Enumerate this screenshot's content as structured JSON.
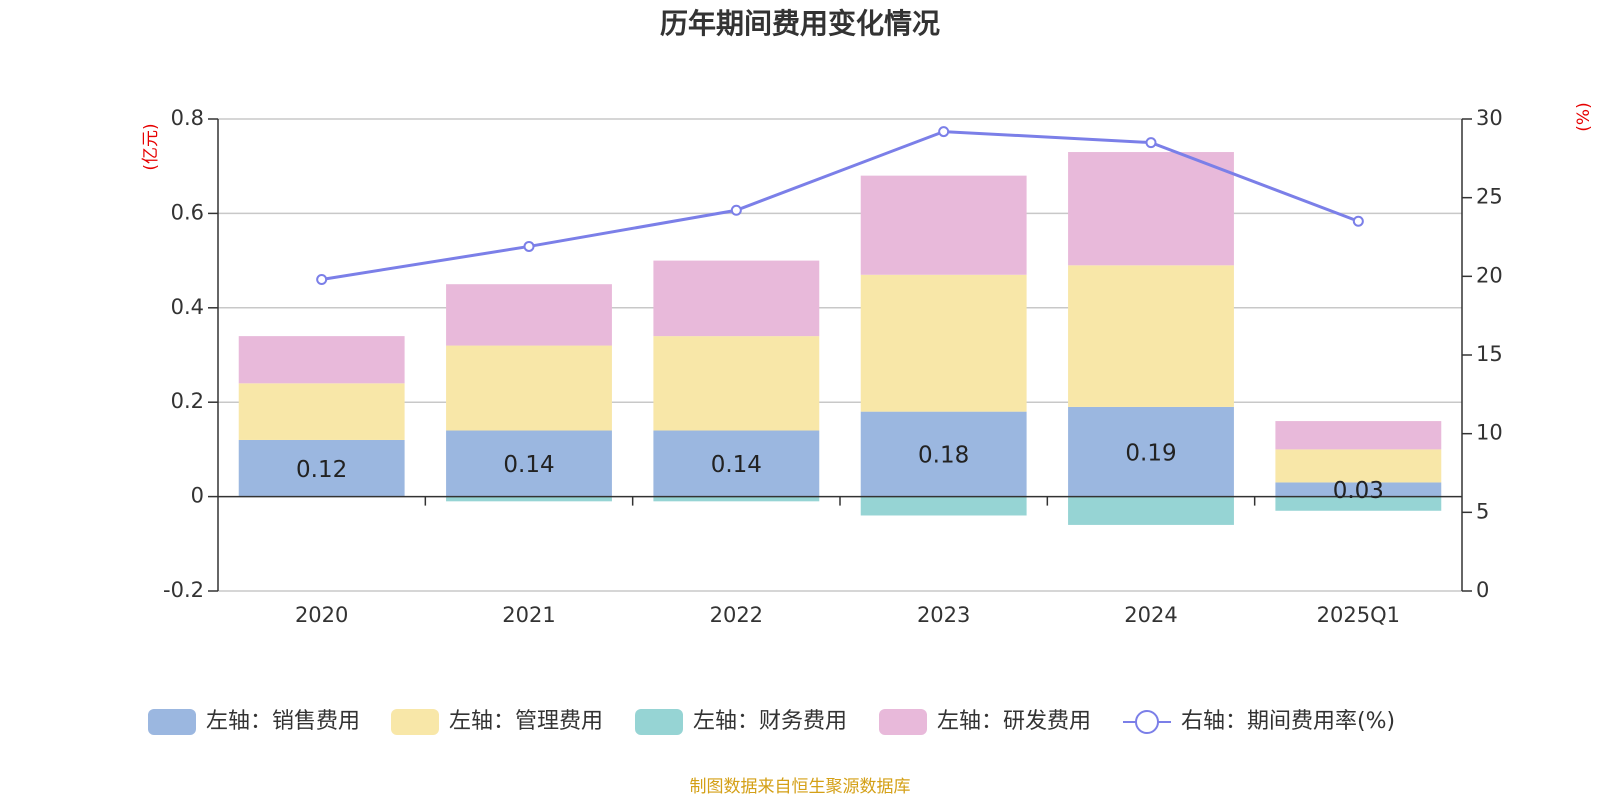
{
  "chart_data": {
    "type": "bar",
    "title": "历年期间费用变化情况",
    "left_unit": "(亿元)",
    "right_unit": "(%)",
    "categories": [
      "2020",
      "2021",
      "2022",
      "2023",
      "2024",
      "2025Q1"
    ],
    "y_left": {
      "min": -0.2,
      "max": 0.8,
      "ticks": [
        -0.2,
        0,
        0.2,
        0.4,
        0.6,
        0.8
      ],
      "tick_labels": [
        "-0.2",
        "0",
        "0.2",
        "0.4",
        "0.6",
        "0.8"
      ]
    },
    "y_right": {
      "min": 0,
      "max": 30,
      "ticks": [
        0,
        5,
        10,
        15,
        20,
        25,
        30
      ],
      "tick_labels": [
        "0",
        "5",
        "10",
        "15",
        "20",
        "25",
        "30"
      ]
    },
    "stacked": true,
    "series": [
      {
        "name": "左轴：销售费用",
        "type": "bar",
        "axis": "left",
        "color": "#9bb7e0",
        "values": [
          0.12,
          0.14,
          0.14,
          0.18,
          0.19,
          0.03
        ],
        "labels": [
          "0.12",
          "0.14",
          "0.14",
          "0.18",
          "0.19",
          "0.03"
        ]
      },
      {
        "name": "左轴：管理费用",
        "type": "bar",
        "axis": "left",
        "color": "#f8e7a8",
        "values": [
          0.12,
          0.18,
          0.2,
          0.29,
          0.3,
          0.07
        ]
      },
      {
        "name": "左轴：财务费用",
        "type": "bar",
        "axis": "left",
        "color": "#96d4d4",
        "values": [
          0.0,
          -0.01,
          -0.01,
          -0.04,
          -0.06,
          -0.03
        ]
      },
      {
        "name": "左轴：研发费用",
        "type": "bar",
        "axis": "left",
        "color": "#e8b9da",
        "values": [
          0.1,
          0.13,
          0.16,
          0.21,
          0.24,
          0.06
        ]
      },
      {
        "name": "右轴：期间费用率(%)",
        "type": "line",
        "axis": "right",
        "color": "#7b7fe8",
        "values": [
          19.8,
          21.9,
          24.2,
          29.2,
          28.5,
          23.5
        ]
      }
    ],
    "legend_position": "bottom",
    "grid": true
  },
  "source": "制图数据来自恒生聚源数据库"
}
